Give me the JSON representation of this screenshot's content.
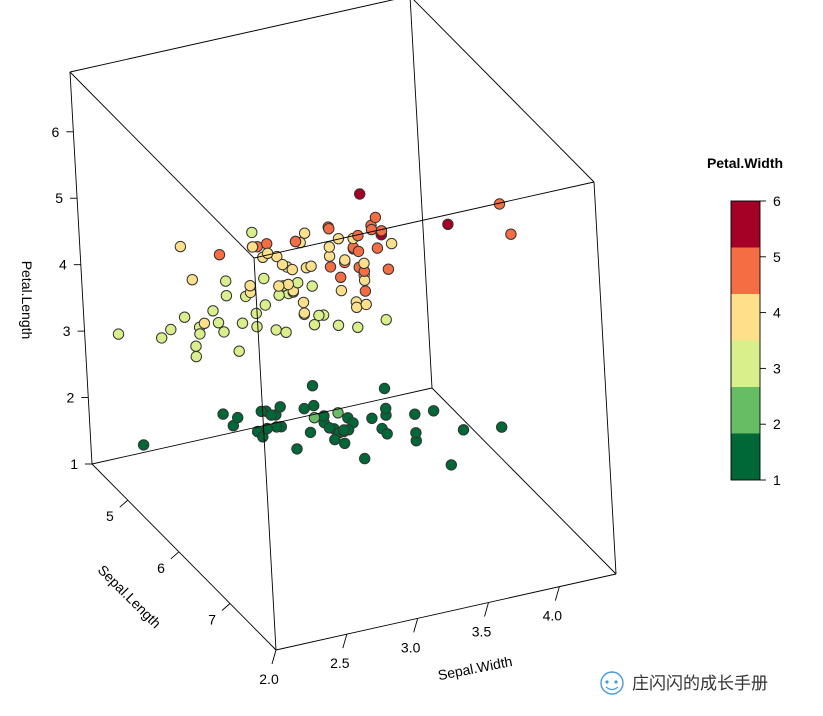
{
  "chart_data": {
    "type": "scatter",
    "projection": "3d",
    "axes": {
      "x": {
        "label": "Sepal.Width",
        "range": [
          2.0,
          4.4
        ],
        "ticks": [
          "2.0",
          "2.5",
          "3.0",
          "3.5",
          "4.0"
        ],
        "tick_values": [
          2.0,
          2.5,
          3.0,
          3.5,
          4.0
        ]
      },
      "y": {
        "label": "Sepal.Length",
        "range": [
          4.3,
          7.9
        ],
        "ticks": [
          "5",
          "6",
          "7"
        ],
        "tick_values": [
          5,
          6,
          7
        ]
      },
      "z": {
        "label": "Petal.Length",
        "range": [
          1.0,
          6.9
        ],
        "ticks": [
          "1",
          "2",
          "3",
          "4",
          "5",
          "6"
        ],
        "tick_values": [
          1,
          2,
          3,
          4,
          5,
          6
        ]
      }
    },
    "legend": {
      "title": "Petal.Width",
      "placement": "right",
      "bins": [
        {
          "label": "1",
          "color": "#006837"
        },
        {
          "label": "2",
          "color": "#66bd63"
        },
        {
          "label": "3",
          "color": "#d9ef8b"
        },
        {
          "label": "4",
          "color": "#fee08b"
        },
        {
          "label": "5",
          "color": "#f46d43"
        },
        {
          "label": "6",
          "color": "#a50026"
        }
      ],
      "tick_labels": [
        "1",
        "2",
        "3",
        "4",
        "5",
        "6"
      ]
    },
    "marker_stroke": "#333333",
    "grid": false,
    "box": true,
    "points": [
      [
        3.5,
        5.1,
        1.4,
        0.2
      ],
      [
        3.0,
        4.9,
        1.4,
        0.2
      ],
      [
        3.2,
        4.7,
        1.3,
        0.2
      ],
      [
        3.1,
        4.6,
        1.5,
        0.2
      ],
      [
        3.6,
        5.0,
        1.4,
        0.2
      ],
      [
        3.9,
        5.4,
        1.7,
        0.4
      ],
      [
        3.4,
        4.6,
        1.4,
        0.3
      ],
      [
        3.4,
        5.0,
        1.5,
        0.2
      ],
      [
        2.9,
        4.4,
        1.4,
        0.2
      ],
      [
        3.1,
        4.9,
        1.5,
        0.1
      ],
      [
        3.7,
        5.4,
        1.5,
        0.2
      ],
      [
        3.4,
        4.8,
        1.6,
        0.2
      ],
      [
        3.0,
        4.8,
        1.4,
        0.1
      ],
      [
        3.0,
        4.3,
        1.1,
        0.1
      ],
      [
        4.0,
        5.8,
        1.2,
        0.2
      ],
      [
        4.4,
        5.7,
        1.5,
        0.4
      ],
      [
        3.9,
        5.4,
        1.3,
        0.4
      ],
      [
        3.5,
        5.1,
        1.4,
        0.3
      ],
      [
        3.8,
        5.7,
        1.7,
        0.3
      ],
      [
        3.8,
        5.1,
        1.5,
        0.3
      ],
      [
        3.4,
        5.4,
        1.7,
        0.2
      ],
      [
        3.7,
        5.1,
        1.5,
        0.4
      ],
      [
        3.6,
        4.6,
        1.0,
        0.2
      ],
      [
        3.3,
        5.1,
        1.7,
        0.5
      ],
      [
        3.4,
        4.8,
        1.9,
        0.2
      ],
      [
        3.0,
        5.0,
        1.6,
        0.2
      ],
      [
        3.4,
        5.0,
        1.6,
        0.4
      ],
      [
        3.5,
        5.2,
        1.5,
        0.2
      ],
      [
        3.4,
        5.2,
        1.4,
        0.2
      ],
      [
        3.2,
        4.7,
        1.6,
        0.2
      ],
      [
        3.1,
        4.8,
        1.6,
        0.2
      ],
      [
        3.4,
        5.4,
        1.5,
        0.4
      ],
      [
        4.1,
        5.2,
        1.5,
        0.1
      ],
      [
        4.2,
        5.5,
        1.4,
        0.2
      ],
      [
        3.1,
        4.9,
        1.5,
        0.2
      ],
      [
        3.2,
        5.0,
        1.2,
        0.2
      ],
      [
        3.5,
        5.5,
        1.3,
        0.2
      ],
      [
        3.6,
        4.9,
        1.4,
        0.1
      ],
      [
        3.0,
        4.4,
        1.3,
        0.2
      ],
      [
        3.4,
        5.1,
        1.5,
        0.2
      ],
      [
        3.5,
        5.0,
        1.3,
        0.3
      ],
      [
        2.3,
        4.5,
        1.3,
        0.3
      ],
      [
        3.2,
        4.4,
        1.3,
        0.2
      ],
      [
        3.5,
        5.0,
        1.6,
        0.6
      ],
      [
        3.8,
        5.1,
        1.9,
        0.4
      ],
      [
        3.0,
        4.8,
        1.4,
        0.3
      ],
      [
        3.8,
        5.1,
        1.6,
        0.2
      ],
      [
        3.2,
        4.6,
        1.4,
        0.2
      ],
      [
        3.7,
        5.3,
        1.5,
        0.2
      ],
      [
        3.3,
        5.0,
        1.4,
        0.2
      ],
      [
        3.2,
        7.0,
        4.7,
        1.4
      ],
      [
        3.2,
        6.4,
        4.5,
        1.5
      ],
      [
        3.1,
        6.9,
        4.9,
        1.5
      ],
      [
        2.3,
        5.5,
        4.0,
        1.3
      ],
      [
        2.8,
        6.5,
        4.6,
        1.5
      ],
      [
        2.8,
        5.7,
        4.5,
        1.3
      ],
      [
        3.3,
        6.3,
        4.7,
        1.6
      ],
      [
        2.4,
        4.9,
        3.3,
        1.0
      ],
      [
        2.9,
        6.6,
        4.6,
        1.3
      ],
      [
        2.7,
        5.2,
        3.9,
        1.4
      ],
      [
        2.0,
        5.0,
        3.5,
        1.0
      ],
      [
        3.0,
        5.9,
        4.2,
        1.5
      ],
      [
        2.2,
        6.0,
        4.0,
        1.0
      ],
      [
        2.9,
        6.1,
        4.7,
        1.4
      ],
      [
        2.9,
        5.6,
        3.6,
        1.3
      ],
      [
        3.1,
        6.7,
        4.4,
        1.4
      ],
      [
        3.0,
        5.6,
        4.5,
        1.5
      ],
      [
        2.7,
        5.8,
        4.1,
        1.0
      ],
      [
        2.2,
        6.2,
        4.5,
        1.5
      ],
      [
        2.5,
        5.6,
        3.9,
        1.1
      ],
      [
        3.2,
        5.9,
        4.8,
        1.8
      ],
      [
        2.8,
        6.1,
        4.0,
        1.3
      ],
      [
        2.5,
        6.3,
        4.9,
        1.5
      ],
      [
        2.8,
        6.1,
        4.7,
        1.2
      ],
      [
        2.9,
        6.4,
        4.3,
        1.3
      ],
      [
        3.0,
        6.6,
        4.4,
        1.4
      ],
      [
        2.8,
        6.8,
        4.8,
        1.4
      ],
      [
        3.0,
        6.7,
        5.0,
        1.7
      ],
      [
        2.9,
        6.0,
        4.5,
        1.5
      ],
      [
        2.6,
        5.7,
        3.5,
        1.0
      ],
      [
        2.4,
        5.5,
        3.8,
        1.1
      ],
      [
        2.4,
        5.5,
        3.7,
        1.0
      ],
      [
        2.7,
        5.8,
        3.9,
        1.2
      ],
      [
        2.7,
        6.0,
        5.1,
        1.6
      ],
      [
        3.0,
        5.4,
        4.5,
        1.5
      ],
      [
        3.4,
        6.0,
        4.5,
        1.6
      ],
      [
        3.1,
        6.7,
        4.7,
        1.5
      ],
      [
        2.3,
        6.3,
        4.4,
        1.3
      ],
      [
        3.0,
        5.6,
        4.1,
        1.3
      ],
      [
        2.5,
        5.5,
        4.0,
        1.3
      ],
      [
        2.6,
        5.5,
        4.4,
        1.2
      ],
      [
        3.0,
        6.1,
        4.6,
        1.4
      ],
      [
        2.6,
        5.8,
        4.0,
        1.2
      ],
      [
        2.3,
        5.0,
        3.3,
        1.0
      ],
      [
        2.7,
        5.6,
        4.2,
        1.3
      ],
      [
        3.0,
        5.7,
        4.2,
        1.2
      ],
      [
        2.9,
        5.7,
        4.2,
        1.3
      ],
      [
        2.9,
        6.2,
        4.3,
        1.3
      ],
      [
        2.5,
        5.1,
        3.0,
        1.1
      ],
      [
        2.8,
        5.7,
        4.1,
        1.3
      ],
      [
        3.3,
        6.3,
        6.0,
        2.5
      ],
      [
        2.7,
        5.8,
        5.1,
        1.9
      ],
      [
        3.0,
        7.1,
        5.9,
        2.1
      ],
      [
        2.9,
        6.3,
        5.6,
        1.8
      ],
      [
        3.0,
        6.5,
        5.8,
        2.2
      ],
      [
        3.0,
        7.6,
        6.6,
        2.1
      ],
      [
        2.5,
        4.9,
        4.5,
        1.7
      ],
      [
        2.9,
        7.3,
        6.3,
        1.8
      ],
      [
        2.5,
        6.7,
        5.8,
        1.8
      ],
      [
        3.6,
        7.2,
        6.1,
        2.5
      ],
      [
        3.2,
        6.5,
        5.1,
        2.0
      ],
      [
        2.7,
        6.4,
        5.3,
        1.9
      ],
      [
        3.0,
        6.8,
        5.5,
        2.1
      ],
      [
        2.5,
        5.7,
        5.0,
        2.0
      ],
      [
        2.8,
        5.8,
        5.1,
        2.4
      ],
      [
        3.2,
        6.4,
        5.3,
        2.3
      ],
      [
        3.0,
        6.5,
        5.5,
        1.8
      ],
      [
        3.8,
        7.7,
        6.7,
        2.2
      ],
      [
        2.6,
        7.7,
        6.9,
        2.3
      ],
      [
        2.2,
        6.0,
        5.0,
        1.5
      ],
      [
        3.2,
        6.9,
        5.7,
        2.3
      ],
      [
        2.8,
        5.6,
        4.9,
        2.0
      ],
      [
        2.8,
        7.7,
        6.7,
        2.0
      ],
      [
        2.7,
        6.3,
        4.9,
        1.8
      ],
      [
        3.3,
        6.7,
        5.7,
        2.1
      ],
      [
        3.2,
        7.2,
        6.0,
        1.8
      ],
      [
        2.8,
        6.2,
        4.8,
        1.8
      ],
      [
        3.0,
        6.1,
        4.9,
        1.8
      ],
      [
        2.8,
        6.4,
        5.6,
        2.1
      ],
      [
        3.0,
        7.2,
        5.8,
        1.6
      ],
      [
        2.8,
        7.4,
        6.1,
        1.9
      ],
      [
        3.8,
        7.9,
        6.4,
        2.0
      ],
      [
        2.8,
        6.4,
        5.6,
        2.2
      ],
      [
        2.8,
        6.3,
        5.1,
        1.5
      ],
      [
        2.6,
        6.1,
        5.6,
        1.4
      ],
      [
        3.0,
        7.7,
        6.1,
        2.3
      ],
      [
        3.4,
        6.3,
        5.6,
        2.4
      ],
      [
        3.1,
        6.4,
        5.5,
        1.8
      ],
      [
        3.0,
        6.0,
        4.8,
        1.8
      ],
      [
        3.1,
        6.9,
        5.4,
        2.1
      ],
      [
        3.1,
        6.7,
        5.6,
        2.4
      ],
      [
        3.1,
        6.9,
        5.1,
        2.3
      ],
      [
        2.7,
        5.8,
        5.1,
        1.9
      ],
      [
        3.2,
        6.8,
        5.9,
        2.3
      ],
      [
        3.3,
        6.7,
        5.7,
        2.5
      ],
      [
        3.0,
        6.7,
        5.2,
        2.3
      ],
      [
        2.5,
        6.3,
        5.0,
        1.9
      ],
      [
        3.0,
        6.5,
        5.2,
        2.0
      ],
      [
        3.4,
        6.2,
        5.4,
        2.3
      ],
      [
        3.0,
        5.9,
        5.1,
        1.8
      ]
    ]
  },
  "watermark": {
    "icon": "wechat-icon",
    "text": "庄闪闪的成长手册"
  }
}
